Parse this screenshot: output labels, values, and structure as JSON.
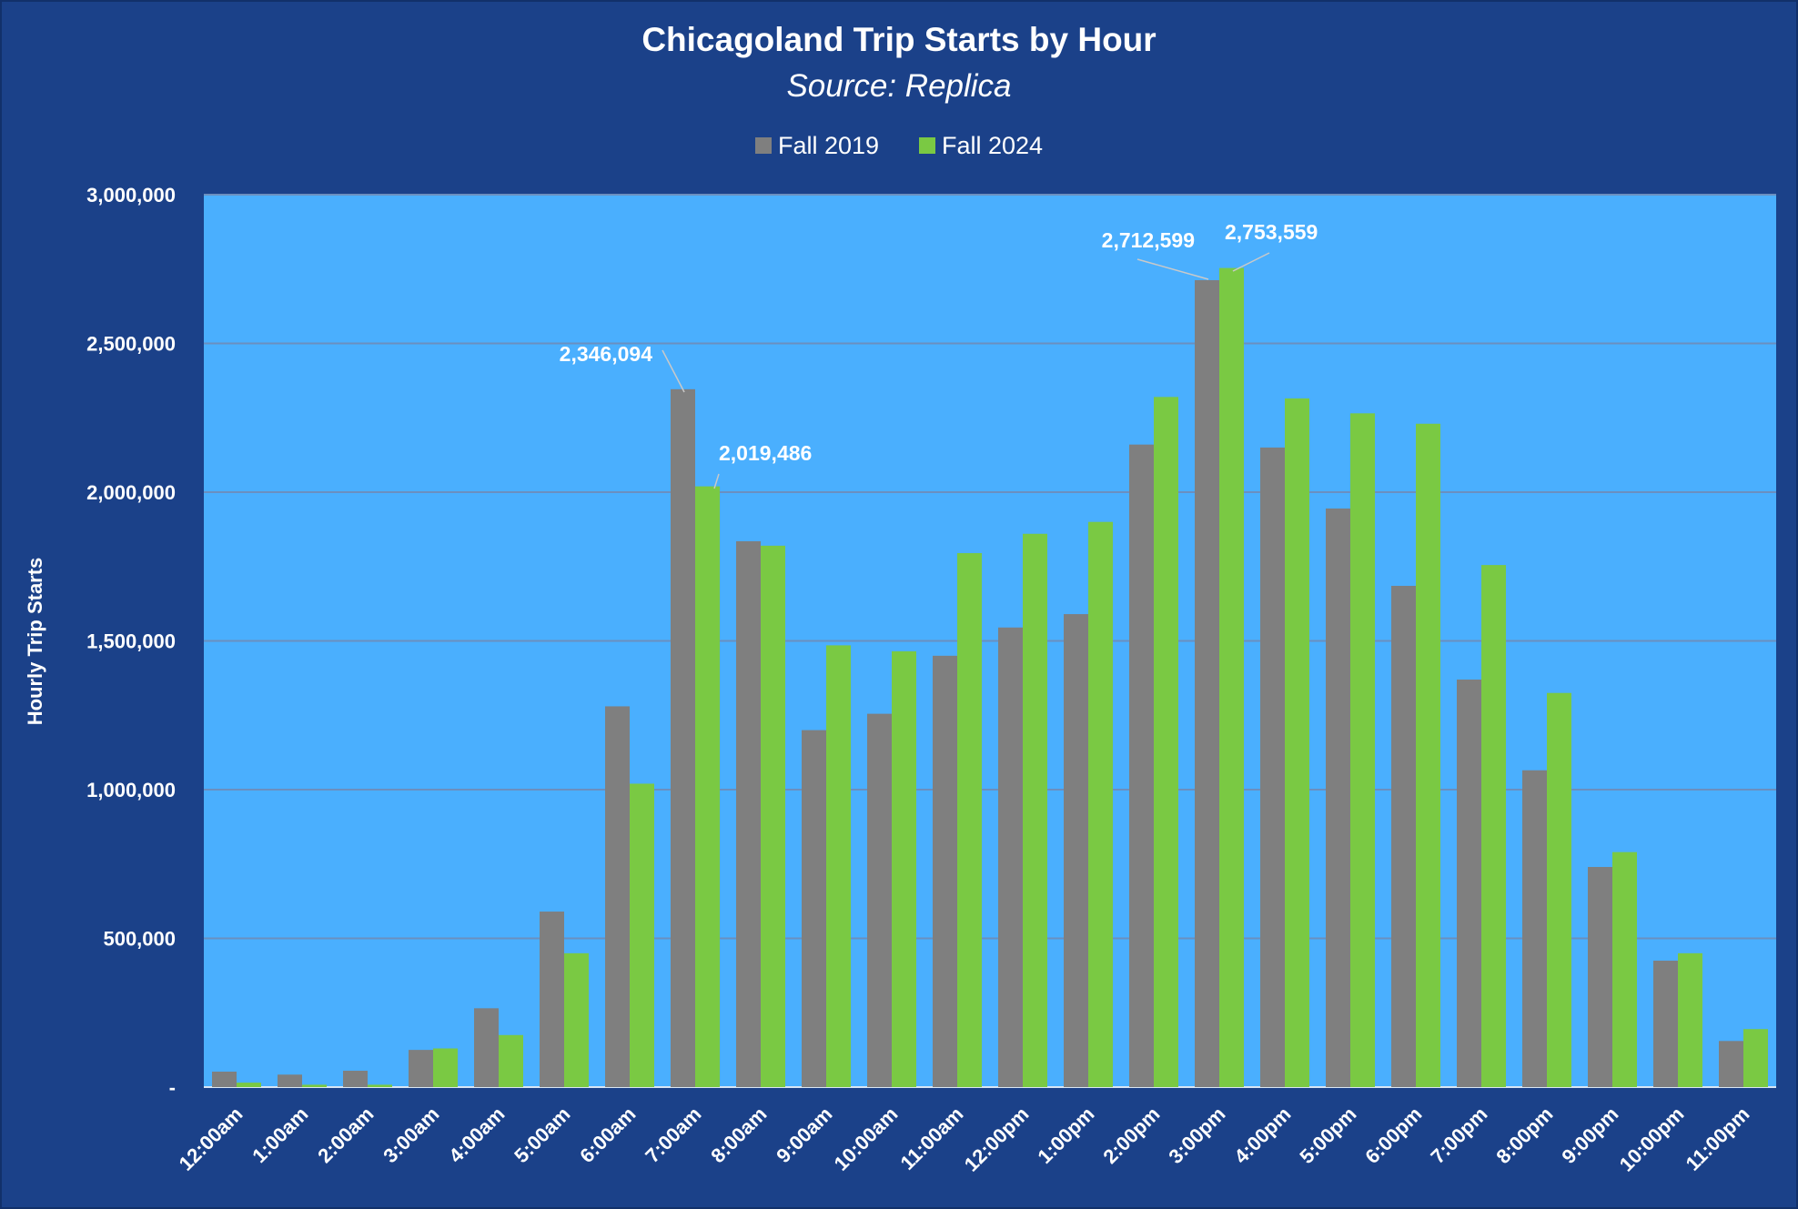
{
  "chart_data": {
    "type": "bar",
    "title": "Chicagoland Trip Starts by Hour",
    "subtitle": "Source: Replica",
    "xlabel": "",
    "ylabel": "Hourly Trip Starts",
    "ylim": [
      0,
      3000000
    ],
    "yticks": [
      0,
      500000,
      1000000,
      1500000,
      2000000,
      2500000,
      3000000
    ],
    "ytick_labels": [
      "-",
      "500,000",
      "1,000,000",
      "1,500,000",
      "2,000,000",
      "2,500,000",
      "3,000,000"
    ],
    "grid": true,
    "legend_position": "top",
    "categories": [
      "12:00am",
      "1:00am",
      "2:00am",
      "3:00am",
      "4:00am",
      "5:00am",
      "6:00am",
      "7:00am",
      "8:00am",
      "9:00am",
      "10:00am",
      "11:00am",
      "12:00pm",
      "1:00pm",
      "2:00pm",
      "3:00pm",
      "4:00pm",
      "5:00pm",
      "6:00pm",
      "7:00pm",
      "8:00pm",
      "9:00pm",
      "10:00pm",
      "11:00pm"
    ],
    "series": [
      {
        "name": "Fall 2019",
        "color": "#7f7f7f",
        "values": [
          52000,
          42000,
          55000,
          125000,
          265000,
          590000,
          1280000,
          2346094,
          1835000,
          1200000,
          1255000,
          1450000,
          1545000,
          1590000,
          2160000,
          2712599,
          2150000,
          1945000,
          1685000,
          1370000,
          1065000,
          740000,
          425000,
          155000
        ]
      },
      {
        "name": "Fall 2024",
        "color": "#7ac943",
        "values": [
          15000,
          8000,
          8000,
          130000,
          175000,
          450000,
          1020000,
          2019486,
          1820000,
          1485000,
          1465000,
          1795000,
          1860000,
          1900000,
          2320000,
          2753559,
          2315000,
          2265000,
          2230000,
          1755000,
          1325000,
          790000,
          450000,
          195000
        ]
      }
    ],
    "annotations": [
      {
        "series": 0,
        "index": 7,
        "text": "2,346,094"
      },
      {
        "series": 1,
        "index": 7,
        "text": "2,019,486"
      },
      {
        "series": 0,
        "index": 15,
        "text": "2,712,599"
      },
      {
        "series": 1,
        "index": 15,
        "text": "2,753,559"
      }
    ],
    "colors": {
      "background": "#1b4189",
      "plot_background": "#4aaffe",
      "gridline": "#6b8fbf"
    }
  }
}
